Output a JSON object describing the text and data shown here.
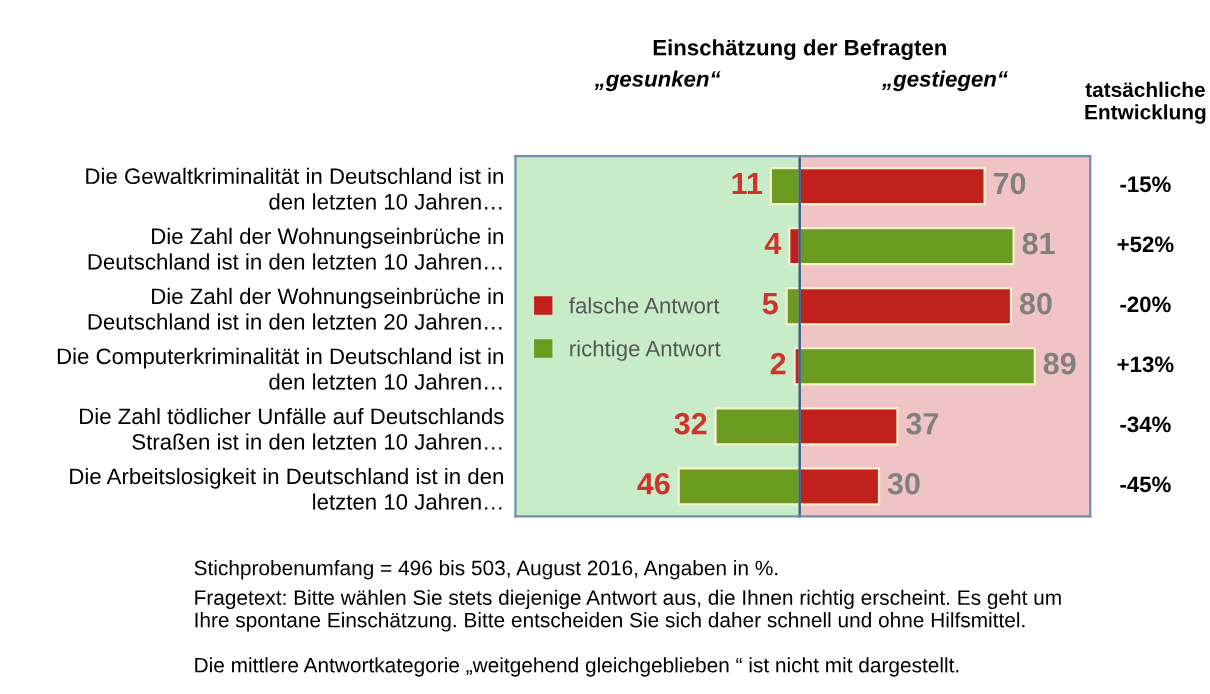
{
  "chart_data": [
    {
      "type": "bar",
      "orientation": "horizontal",
      "data_labels": true,
      "title": "„gesunken“",
      "categories": [
        "Die Gewaltkriminalität in Deutschland ist in\nden letzten 10 Jahren…",
        "Die Zahl der Wohnungseinbrüche in\nDeutschland ist in den letzten 10 Jahren…",
        "Die Zahl der Wohnungseinbrüche in\nDeutschland ist in den letzten 20 Jahren…",
        "Die Computerkriminalität in Deutschland ist in\nden letzten 10 Jahren…",
        "Die Zahl tödlicher Unfälle auf Deutschlands\nStraßen ist in den letzten 10 Jahren…",
        "Die Arbeitslosigkeit in Deutschland ist in den\nletzten 10 Jahren…"
      ],
      "series": [
        {
          "name": "falsche Antwort",
          "color": "#c0221b",
          "values": [
            null,
            4,
            null,
            2,
            null,
            null
          ]
        },
        {
          "name": "richtige Antwort",
          "color": "#6a9a1f",
          "values": [
            11,
            null,
            5,
            null,
            32,
            46
          ]
        }
      ],
      "xlim": [
        108,
        0
      ],
      "tick_labels": "y",
      "legend": "left",
      "bands": [
        {
          "axis": "x",
          "from": 108,
          "to": 0,
          "color": "#c8ecc8"
        }
      ],
      "annotations": [
        "Einschätzung der Befragten",
        "Stichprobenumfang = 496 bis 503, August 2016, Angaben in %.",
        "Fragetext: Bitte wählen Sie stets diejenige Antwort aus, die Ihnen richtig erscheint. Es geht um\nIhre spontane Einschätzung. Bitte entscheiden Sie sich daher schnell und ohne Hilfsmittel.",
        "Die mittlere Antwortkategorie „weitgehend gleichgeblieben “ ist nicht mit dargestellt."
      ]
    },
    {
      "type": "bar",
      "orientation": "horizontal",
      "data_labels": true,
      "title": "„gestiegen“",
      "categories": [
        null,
        null,
        null,
        null,
        null,
        null
      ],
      "series": [
        {
          "color": "#c0221b",
          "values": [
            70,
            null,
            80,
            null,
            37,
            30
          ]
        },
        {
          "color": "#6a9a1f",
          "values": [
            null,
            81,
            null,
            89,
            null,
            null
          ]
        }
      ],
      "xlim": [
        0,
        110
      ],
      "tick_labels": false,
      "bands": [
        {
          "axis": "x",
          "from": 0,
          "to": 110,
          "color": "#f0c4c4"
        }
      ],
      "annotations": [
        "tatsächliche\nEntwicklung",
        "-15%",
        "+52%",
        "-20%",
        "+13%",
        "-34%",
        "-45%"
      ]
    }
  ]
}
